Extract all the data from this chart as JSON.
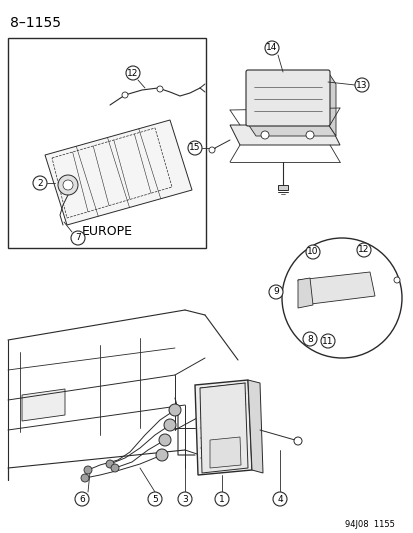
{
  "title": "8–1155",
  "footer": "94J08  1155",
  "bg": "#ffffff",
  "lc": "#2a2a2a",
  "tc": "#000000",
  "europe_label": "EUROPE",
  "figsize": [
    4.14,
    5.33
  ],
  "dpi": 100
}
